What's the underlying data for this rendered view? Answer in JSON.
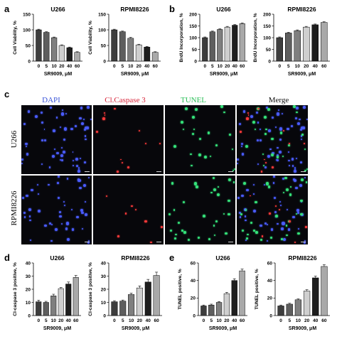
{
  "panels": {
    "a": "a",
    "b": "b",
    "c": "c",
    "d": "d",
    "e": "e"
  },
  "micrograph": {
    "columns": [
      "DAPI",
      "Cl.Caspase 3",
      "TUNEL",
      "Merge"
    ],
    "column_colors": [
      "#3a54d8",
      "#d8253a",
      "#2bbf57",
      "#111111"
    ],
    "rows": [
      "U266",
      "RPMI8226"
    ],
    "stain_colors": {
      "dapi": "#4a5cff",
      "caspase": "#ff3a3a",
      "tunel": "#35e27a"
    }
  },
  "chart_data": [
    {
      "panel": "a",
      "type": "bar",
      "title": "U266",
      "categories": [
        "0",
        "5",
        "10",
        "20",
        "40",
        "60"
      ],
      "values": [
        100,
        92,
        75,
        50,
        43,
        28
      ],
      "errors": [
        2,
        2,
        2,
        2,
        2,
        2
      ],
      "xlabel": "SR9009, μM",
      "ylabel": "Cell Viability, %",
      "ylim": [
        0,
        150
      ],
      "yticks": [
        0,
        50,
        100,
        150
      ]
    },
    {
      "panel": "a",
      "type": "bar",
      "title": "RPMI8226",
      "categories": [
        "0",
        "5",
        "10",
        "20",
        "40",
        "60"
      ],
      "values": [
        100,
        94,
        73,
        52,
        45,
        28
      ],
      "errors": [
        2,
        2,
        3,
        2,
        2,
        2
      ],
      "xlabel": "SR9009, μM",
      "ylabel": "Cell Viability, %",
      "ylim": [
        0,
        150
      ],
      "yticks": [
        0,
        50,
        100,
        150
      ]
    },
    {
      "panel": "b",
      "type": "bar",
      "title": "U266",
      "categories": [
        "0",
        "5",
        "10",
        "20",
        "40",
        "60"
      ],
      "values": [
        100,
        125,
        135,
        145,
        153,
        160
      ],
      "errors": [
        3,
        3,
        3,
        3,
        3,
        3
      ],
      "xlabel": "SR9009, μM",
      "ylabel": "BrdU Incorporation, %",
      "ylim": [
        0,
        200
      ],
      "yticks": [
        0,
        50,
        100,
        150,
        200
      ]
    },
    {
      "panel": "b",
      "type": "bar",
      "title": "RPMI8226",
      "categories": [
        "0",
        "5",
        "10",
        "20",
        "40",
        "60"
      ],
      "values": [
        100,
        120,
        130,
        145,
        155,
        165
      ],
      "errors": [
        3,
        3,
        3,
        3,
        3,
        3
      ],
      "xlabel": "SR9009, μM",
      "ylabel": "BrdU Incorporation, %",
      "ylim": [
        0,
        200
      ],
      "yticks": [
        0,
        50,
        100,
        150,
        200
      ]
    },
    {
      "panel": "d",
      "type": "bar",
      "title": "U266",
      "categories": [
        "0",
        "5",
        "10",
        "20",
        "40",
        "60"
      ],
      "values": [
        10.5,
        10,
        15,
        20.5,
        24,
        29
      ],
      "errors": [
        1.2,
        0.8,
        1.2,
        0.8,
        1.5,
        1.5
      ],
      "xlabel": "SR9009, μM",
      "ylabel": "Cl-caspase 3 positive, %",
      "ylim": [
        0,
        40
      ],
      "yticks": [
        0,
        10,
        20,
        30,
        40
      ]
    },
    {
      "panel": "d",
      "type": "bar",
      "title": "RPMI8226",
      "categories": [
        "0",
        "5",
        "10",
        "20",
        "40",
        "60"
      ],
      "values": [
        10.5,
        11,
        16,
        21,
        25.5,
        30.5
      ],
      "errors": [
        0.8,
        0.8,
        1,
        1.5,
        2,
        2.5
      ],
      "xlabel": "SR9009, μM",
      "ylabel": "Cl-caspase 3 positive, %",
      "ylim": [
        0,
        40
      ],
      "yticks": [
        0,
        10,
        20,
        30,
        40
      ]
    },
    {
      "panel": "e",
      "type": "bar",
      "title": "U266",
      "categories": [
        "0",
        "5",
        "10",
        "20",
        "40",
        "60"
      ],
      "values": [
        11,
        12,
        15,
        25,
        40,
        51
      ],
      "errors": [
        1,
        1,
        1,
        1.5,
        2,
        2
      ],
      "xlabel": "SR9009, μM",
      "ylabel": "TUNEL positive, %",
      "ylim": [
        0,
        60
      ],
      "yticks": [
        0,
        20,
        40,
        60
      ]
    },
    {
      "panel": "e",
      "type": "bar",
      "title": "RPMI8226",
      "categories": [
        "0",
        "5",
        "10",
        "20",
        "40",
        "60"
      ],
      "values": [
        11,
        13,
        18,
        28,
        43,
        56
      ],
      "errors": [
        1,
        1,
        1,
        1.5,
        2,
        2
      ],
      "xlabel": "SR9009, μM",
      "ylabel": "TUNEL positive, %",
      "ylim": [
        0,
        60
      ],
      "yticks": [
        0,
        20,
        40,
        60
      ]
    }
  ]
}
